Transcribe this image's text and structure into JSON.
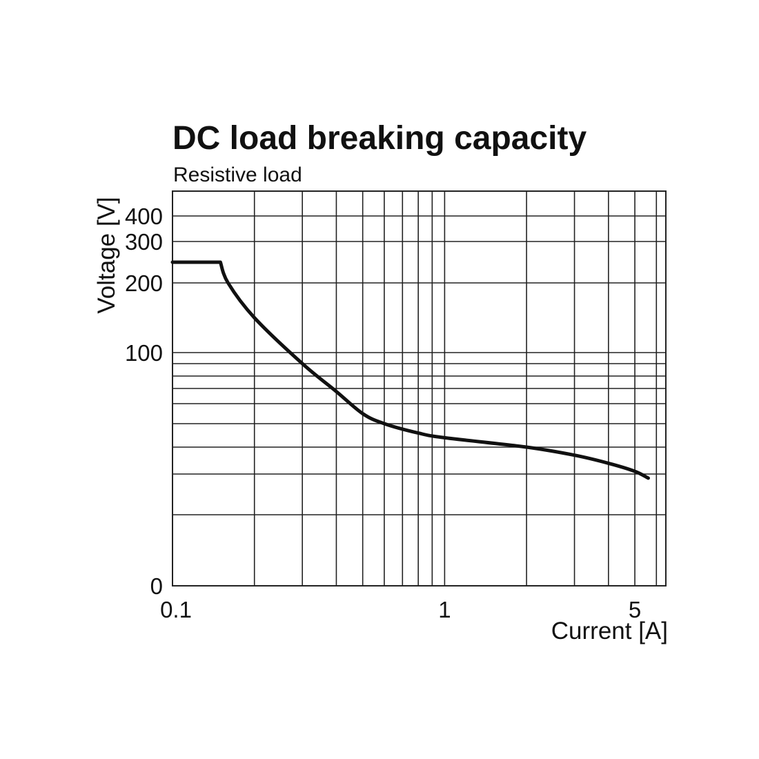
{
  "chart_data": {
    "type": "line",
    "title": "DC load breaking capacity",
    "subtitle": "Resistive load",
    "xlabel": "Current [A]",
    "ylabel": "Voltage [V]",
    "x_scale": "log",
    "xlim": [
      0.1,
      6.5
    ],
    "x_ticks": [
      {
        "value": 0.1,
        "label": "0.1"
      },
      {
        "value": 1,
        "label": "1"
      },
      {
        "value": 5,
        "label": "5"
      }
    ],
    "x_gridlines": [
      0.1,
      0.2,
      0.3,
      0.4,
      0.5,
      0.6,
      0.7,
      0.8,
      0.9,
      1,
      2,
      3,
      4,
      5,
      6,
      6.5
    ],
    "y_ticks": [
      {
        "value": 0,
        "label": "0"
      },
      {
        "value": 100,
        "label": "100"
      },
      {
        "value": 200,
        "label": "200"
      },
      {
        "value": 300,
        "label": "300"
      },
      {
        "value": 400,
        "label": "400"
      }
    ],
    "y_gridlines": [
      0,
      20,
      30,
      40,
      50,
      60,
      70,
      80,
      90,
      100,
      200,
      300,
      400,
      500
    ],
    "grid": true,
    "series": [
      {
        "x": [
          0.1,
          0.15,
          0.16,
          0.2,
          0.3,
          0.4,
          0.5,
          0.6,
          0.8,
          1,
          2,
          3,
          4,
          5,
          5.6
        ],
        "y": [
          250,
          250,
          200,
          150,
          90,
          68,
          55,
          50,
          46,
          44,
          40,
          37,
          34,
          31,
          29
        ]
      }
    ]
  }
}
